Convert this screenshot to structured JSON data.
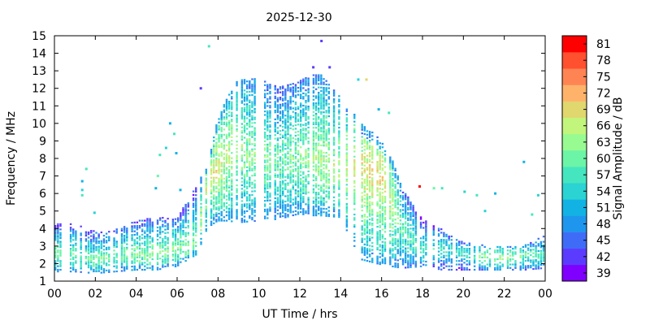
{
  "chart_data": {
    "type": "heatmap",
    "title": "2025-12-30",
    "xlabel": "UT Time / hrs",
    "ylabel": "Frequency / MHz",
    "xlim": [
      0,
      24
    ],
    "ylim": [
      1,
      15
    ],
    "x_ticks": [
      "00",
      "02",
      "04",
      "06",
      "08",
      "10",
      "12",
      "14",
      "16",
      "18",
      "20",
      "22",
      "00"
    ],
    "y_ticks": [
      "1",
      "2",
      "3",
      "4",
      "5",
      "6",
      "7",
      "8",
      "9",
      "10",
      "11",
      "12",
      "13",
      "14",
      "15"
    ],
    "colorbar": {
      "label": "Signal Amplitude / dB",
      "ticks": [
        "39",
        "42",
        "45",
        "48",
        "51",
        "54",
        "57",
        "60",
        "63",
        "66",
        "69",
        "72",
        "75",
        "78",
        "81"
      ],
      "range": [
        39,
        81
      ],
      "colors": [
        "#7f00ff",
        "#5b3cff",
        "#3f6cf7",
        "#1f96ee",
        "#12b3e4",
        "#2bd3d3",
        "#45e6bf",
        "#6cf5a7",
        "#98fb92",
        "#c2f57c",
        "#e0d76e",
        "#ffb36a",
        "#ff8453",
        "#ff5030",
        "#ff0000"
      ]
    },
    "coverage_profile": {
      "hours": [
        0,
        1,
        2,
        3,
        4,
        5,
        6,
        7,
        7.5,
        8,
        8.5,
        9,
        10,
        11,
        12,
        12.5,
        13,
        14,
        15,
        16,
        16.5,
        17,
        18,
        19,
        20,
        21,
        22,
        23,
        24
      ],
      "low_mhz": [
        1.5,
        1.5,
        1.4,
        1.5,
        1.6,
        1.6,
        1.8,
        2.5,
        4,
        4.4,
        4.4,
        4.3,
        4.4,
        4.5,
        4.8,
        4.7,
        4.7,
        4.6,
        2.2,
        1.9,
        1.8,
        1.7,
        1.8,
        1.6,
        1.6,
        1.6,
        1.6,
        1.6,
        1.7
      ],
      "high_mhz": [
        4.3,
        4.2,
        3.8,
        3.9,
        4.4,
        4.6,
        4.5,
        6.5,
        7.5,
        10.2,
        11.5,
        12.5,
        12.5,
        12,
        12.4,
        12.7,
        12.8,
        11.5,
        10,
        9,
        8,
        6.3,
        4.5,
        3.9,
        3.2,
        3,
        3,
        3,
        3.6
      ],
      "peak_db": [
        60,
        60,
        60,
        60,
        62,
        62,
        62,
        63,
        66,
        68,
        66,
        63,
        62,
        60,
        62,
        63,
        64,
        64,
        68,
        69,
        66,
        60,
        58,
        57,
        57,
        62,
        64,
        60,
        58
      ],
      "peak_mhz": [
        2.5,
        2.5,
        2.2,
        2.5,
        2.5,
        2.5,
        2.8,
        3.2,
        6.5,
        7.5,
        8.2,
        8.5,
        8,
        7.7,
        8,
        8,
        8,
        7.5,
        7.2,
        7,
        5.5,
        4,
        2.8,
        2.8,
        2.5,
        2.4,
        2.3,
        2.4,
        2.5
      ]
    },
    "scatter_points": [
      {
        "x": 7.5,
        "y": 14.4,
        "db": 57
      },
      {
        "x": 13.0,
        "y": 14.7,
        "db": 42
      },
      {
        "x": 12.6,
        "y": 13.2,
        "db": 42
      },
      {
        "x": 13.4,
        "y": 13.2,
        "db": 42
      },
      {
        "x": 7.1,
        "y": 12.0,
        "db": 42
      },
      {
        "x": 14.8,
        "y": 12.5,
        "db": 54
      },
      {
        "x": 15.2,
        "y": 12.5,
        "db": 69
      },
      {
        "x": 15.8,
        "y": 10.8,
        "db": 51
      },
      {
        "x": 16.3,
        "y": 10.6,
        "db": 57
      },
      {
        "x": 5.6,
        "y": 10.0,
        "db": 51
      },
      {
        "x": 5.8,
        "y": 9.4,
        "db": 57
      },
      {
        "x": 5.4,
        "y": 8.6,
        "db": 54
      },
      {
        "x": 5.1,
        "y": 8.2,
        "db": 57
      },
      {
        "x": 5.9,
        "y": 8.3,
        "db": 51
      },
      {
        "x": 1.5,
        "y": 7.4,
        "db": 57
      },
      {
        "x": 5.0,
        "y": 7.0,
        "db": 60
      },
      {
        "x": 4.9,
        "y": 6.3,
        "db": 51
      },
      {
        "x": 6.1,
        "y": 6.2,
        "db": 51
      },
      {
        "x": 1.3,
        "y": 6.7,
        "db": 51
      },
      {
        "x": 1.3,
        "y": 6.2,
        "db": 54
      },
      {
        "x": 1.3,
        "y": 5.9,
        "db": 57
      },
      {
        "x": 1.9,
        "y": 4.9,
        "db": 54
      },
      {
        "x": 17.8,
        "y": 6.4,
        "db": 81
      },
      {
        "x": 18.5,
        "y": 6.3,
        "db": 60
      },
      {
        "x": 18.9,
        "y": 6.3,
        "db": 57
      },
      {
        "x": 20.0,
        "y": 6.1,
        "db": 54
      },
      {
        "x": 20.6,
        "y": 5.9,
        "db": 57
      },
      {
        "x": 21.5,
        "y": 6.0,
        "db": 51
      },
      {
        "x": 22.9,
        "y": 7.8,
        "db": 51
      },
      {
        "x": 23.6,
        "y": 5.9,
        "db": 54
      },
      {
        "x": 23.3,
        "y": 4.8,
        "db": 57
      },
      {
        "x": 21.0,
        "y": 5.0,
        "db": 54
      }
    ]
  }
}
